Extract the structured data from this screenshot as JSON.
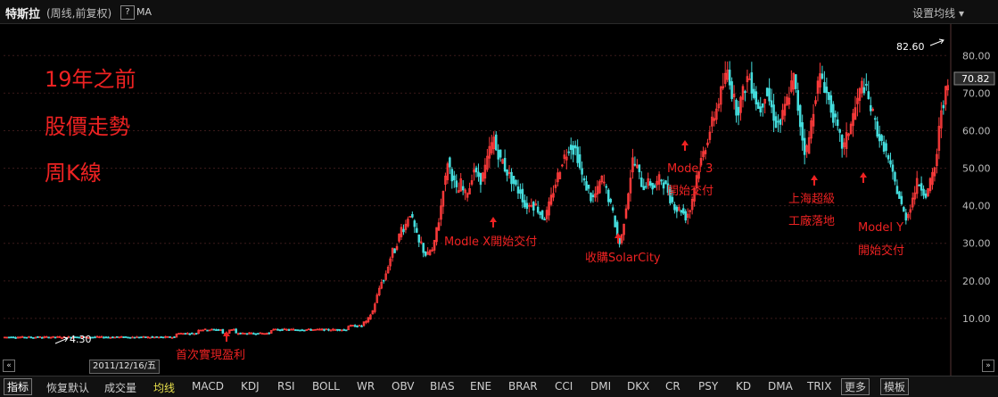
{
  "header": {
    "title": "特斯拉",
    "subtitle": "(周线,前复权)",
    "help": "?",
    "ma_label": "MA",
    "settings": "设置均线 ▾"
  },
  "overlay": {
    "line1": "19年之前",
    "line2": "股價走勢",
    "line3": "周K線"
  },
  "annotations": [
    {
      "text": "首次實現盈利"
    },
    {
      "text": "Modle X開始交付"
    },
    {
      "text": "收購SolarCity"
    },
    {
      "text": "Model 3"
    },
    {
      "text": "開始交付"
    },
    {
      "text": "上海超級"
    },
    {
      "text": "工廠落地"
    },
    {
      "text": "Model Y"
    },
    {
      "text": "開始交付"
    }
  ],
  "markers": {
    "high_label": "82.60",
    "low_label": "4.30",
    "last_price": "70.82",
    "date_box": "2011/12/16/五"
  },
  "colors": {
    "up": "#ff3b3b",
    "down": "#44dddd",
    "annotation": "#ee2222",
    "last_price_bg": "#2a2a2a"
  },
  "chart_data": {
    "type": "candlestick",
    "ylim": [
      0,
      86
    ],
    "yticks": [
      "10.00",
      "20.00",
      "30.00",
      "40.00",
      "50.00",
      "60.00",
      "70.00",
      "80.00"
    ],
    "ytick_values": [
      10,
      20,
      30,
      40,
      50,
      60,
      70,
      80
    ],
    "close_series_approx": [
      5,
      5,
      5,
      5,
      5,
      5,
      5,
      5,
      5,
      5,
      5,
      5,
      5,
      5,
      5,
      5,
      5,
      5,
      5,
      5,
      5,
      5,
      5,
      5,
      5,
      5,
      5,
      5,
      5,
      5,
      5,
      5,
      5,
      5,
      5,
      5,
      5,
      5,
      5,
      5,
      5,
      5,
      5,
      5,
      5,
      5,
      5,
      5,
      5,
      5,
      5,
      5,
      5,
      5,
      5,
      5,
      5,
      5,
      5,
      5,
      5,
      5,
      5,
      5,
      5,
      5,
      5,
      5,
      5,
      5,
      5,
      5,
      5,
      5,
      5,
      5,
      5,
      5,
      6,
      6,
      6,
      6,
      6,
      6,
      6,
      6,
      6,
      6,
      7,
      7,
      7,
      7,
      7,
      7,
      7,
      7,
      7,
      7,
      7,
      6,
      6,
      6,
      7,
      7,
      7,
      6,
      6,
      6,
      6,
      6,
      6,
      6,
      6,
      6,
      6,
      6,
      6,
      6,
      6,
      6,
      6,
      7,
      7,
      7,
      7,
      7,
      7,
      7,
      7,
      7,
      7,
      7,
      7,
      7,
      7,
      7,
      7,
      7,
      7,
      7,
      7,
      7,
      7,
      7,
      7,
      7,
      7,
      7,
      7,
      7,
      7,
      7,
      7,
      7,
      7,
      7,
      8,
      8,
      8,
      8,
      8,
      8,
      8,
      9,
      9,
      10,
      11,
      12,
      14,
      16,
      18,
      20,
      20,
      22,
      24,
      26,
      28,
      28,
      30,
      32,
      34,
      34,
      35,
      37,
      38,
      36,
      34,
      32,
      30,
      30,
      28,
      27,
      27,
      28,
      28,
      30,
      34,
      36,
      40,
      45,
      47,
      52,
      50,
      48,
      46,
      44,
      44,
      46,
      44,
      43,
      44,
      45,
      48,
      50,
      48,
      48,
      47,
      48,
      50,
      52,
      55,
      56,
      58,
      55,
      54,
      52,
      52,
      50,
      49,
      48,
      47,
      46,
      45,
      44,
      44,
      42,
      40,
      40,
      40,
      41,
      40,
      40,
      39,
      38,
      37,
      37,
      38,
      40,
      42,
      44,
      46,
      48,
      50,
      52,
      53,
      54,
      56,
      56,
      55,
      55,
      53,
      50,
      48,
      46,
      45,
      44,
      42,
      42,
      43,
      44,
      46,
      47,
      46,
      44,
      42,
      40,
      38,
      35,
      32,
      30,
      32,
      36,
      40,
      44,
      48,
      52,
      51,
      50,
      48,
      46,
      45,
      46,
      46,
      46,
      45,
      45,
      46,
      47,
      47,
      46,
      45,
      44,
      42,
      41,
      40,
      39,
      39,
      39,
      38,
      37,
      38,
      39,
      42,
      45,
      48,
      50,
      52,
      54,
      56,
      58,
      60,
      62,
      64,
      66,
      68,
      70,
      72,
      74,
      76,
      74,
      70,
      68,
      66,
      66,
      68,
      70,
      72,
      74,
      74,
      72,
      70,
      68,
      66,
      66,
      68,
      70,
      70,
      68,
      66,
      64,
      62,
      62,
      62,
      64,
      66,
      68,
      70,
      72,
      74,
      70,
      66,
      62,
      58,
      55,
      55,
      58,
      62,
      66,
      70,
      72,
      74,
      74,
      72,
      70,
      68,
      66,
      64,
      62,
      60,
      58,
      56,
      56,
      58,
      60,
      62,
      64,
      66,
      68,
      70,
      72,
      72,
      70,
      68,
      66,
      64,
      62,
      60,
      58,
      56,
      56,
      54,
      52,
      50,
      48,
      46,
      44,
      42,
      40,
      38,
      37,
      38,
      40,
      42,
      44,
      46,
      46,
      45,
      44,
      43,
      44,
      46,
      48,
      50,
      54,
      60,
      66,
      68,
      70,
      71
    ]
  }
}
